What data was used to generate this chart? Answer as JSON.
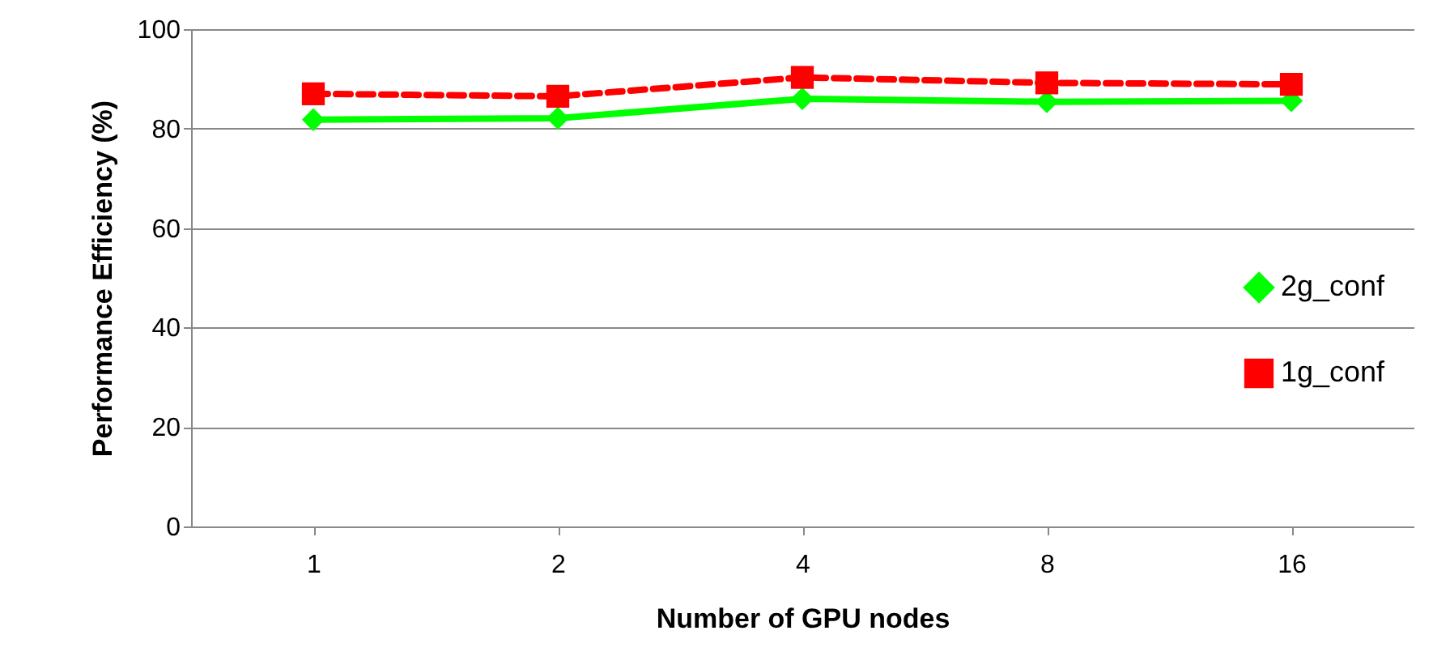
{
  "chart_data": {
    "type": "line",
    "xlabel": "Number of GPU nodes",
    "ylabel": "Performance Efficiency (%)",
    "categories": [
      "1",
      "2",
      "4",
      "8",
      "16"
    ],
    "series": [
      {
        "name": "2g_conf",
        "color": "#00ff00",
        "marker": "diamond",
        "line_style": "solid",
        "values": [
          81.8,
          82.1,
          86.0,
          85.4,
          85.6
        ]
      },
      {
        "name": "1g_conf",
        "color": "#ff0000",
        "marker": "square",
        "line_style": "dashed",
        "values": [
          87.0,
          86.5,
          90.3,
          89.2,
          88.9
        ]
      }
    ],
    "ylim": [
      0,
      100
    ],
    "yticks": [
      0,
      20,
      40,
      60,
      80,
      100
    ],
    "grid": "y",
    "legend": "right"
  }
}
